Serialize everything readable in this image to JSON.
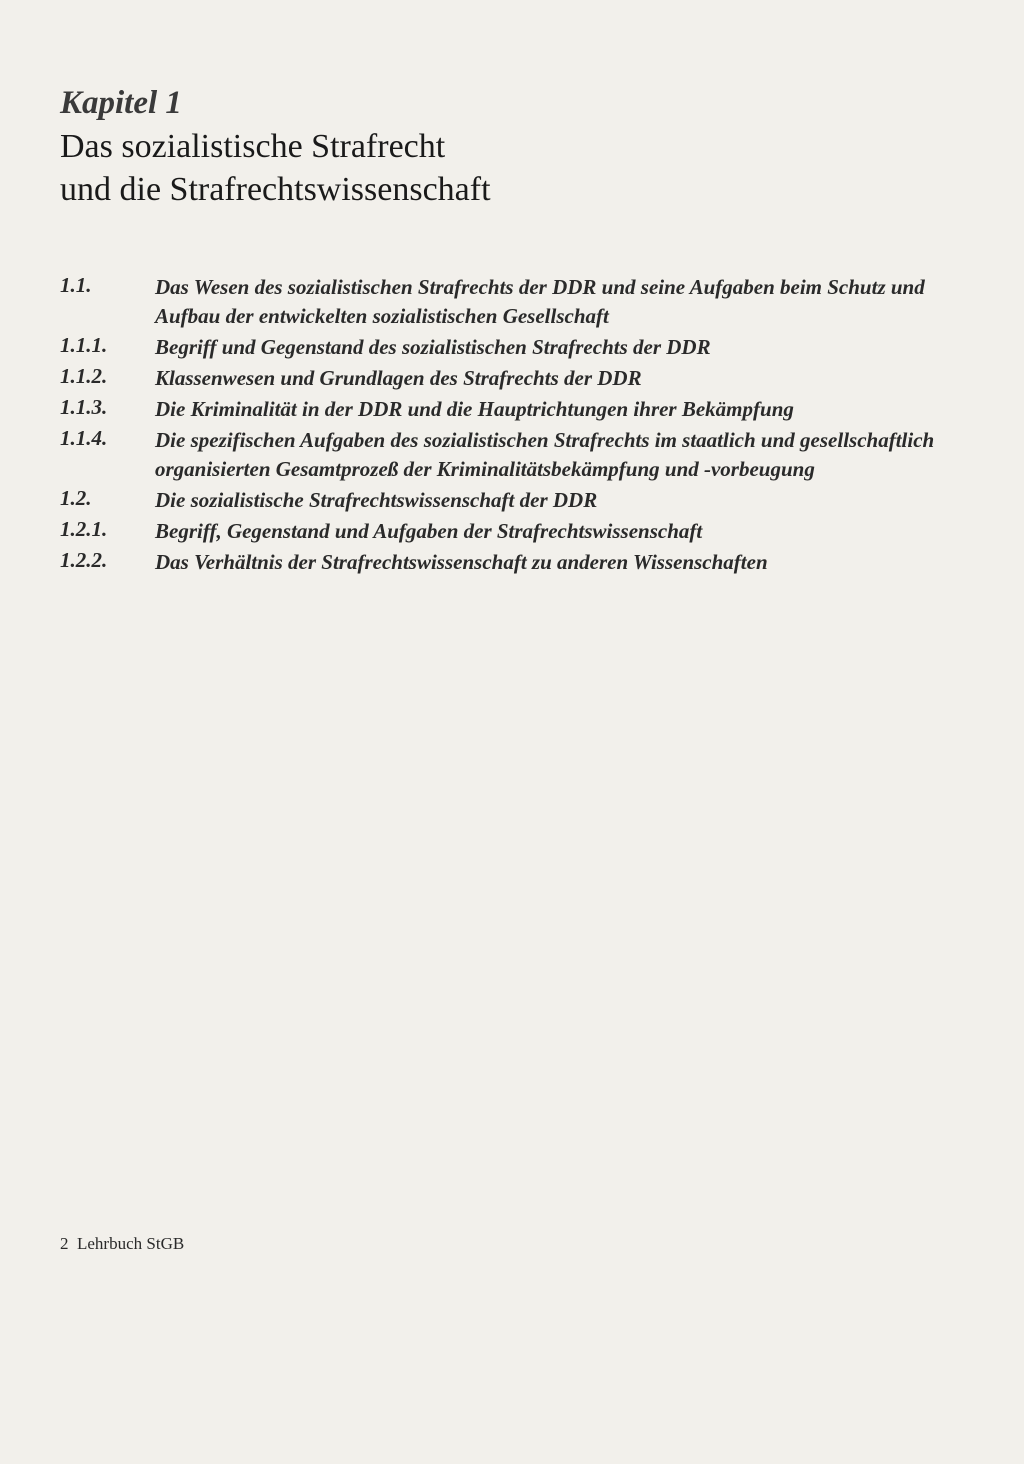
{
  "chapter": {
    "label": "Kapitel 1",
    "title_line1": "Das sozialistische Strafrecht",
    "title_line2": "und die Strafrechtswissenschaft"
  },
  "toc": [
    {
      "num": "1.1.",
      "text": "Das Wesen des sozialistischen Strafrechts der DDR und seine Aufgaben beim Schutz und Aufbau der entwickelten sozialistischen Gesellschaft"
    },
    {
      "num": "1.1.1.",
      "text": "Begriff und Gegenstand des sozialistischen Strafrechts der DDR"
    },
    {
      "num": "1.1.2.",
      "text": "Klassenwesen und Grundlagen des Strafrechts der DDR"
    },
    {
      "num": "1.1.3.",
      "text": "Die Kriminalität in der DDR und die Hauptrichtungen ihrer Bekämpfung"
    },
    {
      "num": "1.1.4.",
      "text": "Die spezifischen Aufgaben des sozialistischen Strafrechts im staatlich und gesellschaftlich organisierten Gesamtprozeß der Kriminalitätsbekämpfung und -vorbeugung"
    },
    {
      "num": "1.2.",
      "text": "Die sozialistische Strafrechtswissenschaft der DDR"
    },
    {
      "num": "1.2.1.",
      "text": "Begriff, Gegenstand und Aufgaben der Strafrechtswissenschaft"
    },
    {
      "num": "1.2.2.",
      "text": "Das Verhältnis der Strafrechtswissenschaft zu anderen Wissenschaften"
    }
  ],
  "footer": {
    "page_number": "2",
    "book_ref": "Lehrbuch StGB"
  },
  "styling": {
    "background_color": "#f2f0eb",
    "text_color": "#2a2a2a",
    "title_fontsize": 34,
    "label_fontsize": 33,
    "toc_fontsize": 21,
    "footer_fontsize": 17,
    "num_column_width": 95
  }
}
